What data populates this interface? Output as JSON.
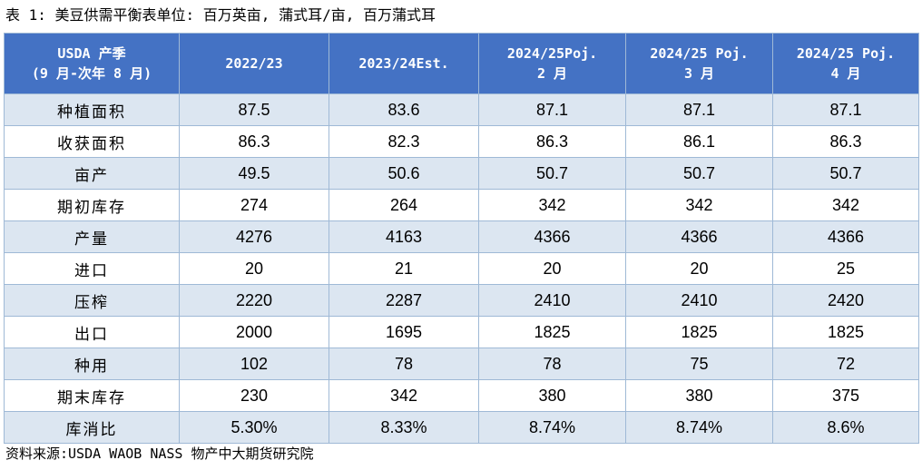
{
  "caption": "表 1: 美豆供需平衡表单位: 百万英亩, 蒲式耳/亩, 百万蒲式耳",
  "header": {
    "col0": {
      "line1": "USDA 产季",
      "line2": "(9 月-次年 8 月)"
    },
    "col1": {
      "line1": "2022/23",
      "line2": ""
    },
    "col2": {
      "line1": "2023/24Est.",
      "line2": ""
    },
    "col3": {
      "line1": "2024/25Poj.",
      "line2": "2 月"
    },
    "col4": {
      "line1": "2024/25 Poj.",
      "line2": "3 月"
    },
    "col5": {
      "line1": "2024/25 Poj.",
      "line2": "4 月"
    }
  },
  "rows": [
    {
      "label": "种植面积",
      "values": [
        "87.5",
        "83.6",
        "87.1",
        "87.1",
        "87.1"
      ]
    },
    {
      "label": "收获面积",
      "values": [
        "86.3",
        "82.3",
        "86.3",
        "86.1",
        "86.3"
      ]
    },
    {
      "label": "亩产",
      "values": [
        "49.5",
        "50.6",
        "50.7",
        "50.7",
        "50.7"
      ]
    },
    {
      "label": "期初库存",
      "values": [
        "274",
        "264",
        "342",
        "342",
        "342"
      ]
    },
    {
      "label": "产量",
      "values": [
        "4276",
        "4163",
        "4366",
        "4366",
        "4366"
      ]
    },
    {
      "label": "进口",
      "values": [
        "20",
        "21",
        "20",
        "20",
        "25"
      ]
    },
    {
      "label": "压榨",
      "values": [
        "2220",
        "2287",
        "2410",
        "2410",
        "2420"
      ]
    },
    {
      "label": "出口",
      "values": [
        "2000",
        "1695",
        "1825",
        "1825",
        "1825"
      ]
    },
    {
      "label": "种用",
      "values": [
        "102",
        "78",
        "78",
        "75",
        "72"
      ]
    },
    {
      "label": "期末库存",
      "values": [
        "230",
        "342",
        "380",
        "380",
        "375"
      ]
    },
    {
      "label": "库消比",
      "values": [
        "5.30%",
        "8.33%",
        "8.74%",
        "8.74%",
        "8.6%"
      ]
    }
  ],
  "source": "资料来源:USDA WAOB NASS 物产中大期货研究院",
  "colors": {
    "header_bg": "#4472c4",
    "header_text": "#ffffff",
    "stripe_bg": "#dce6f1",
    "border": "#9fb9d6"
  }
}
